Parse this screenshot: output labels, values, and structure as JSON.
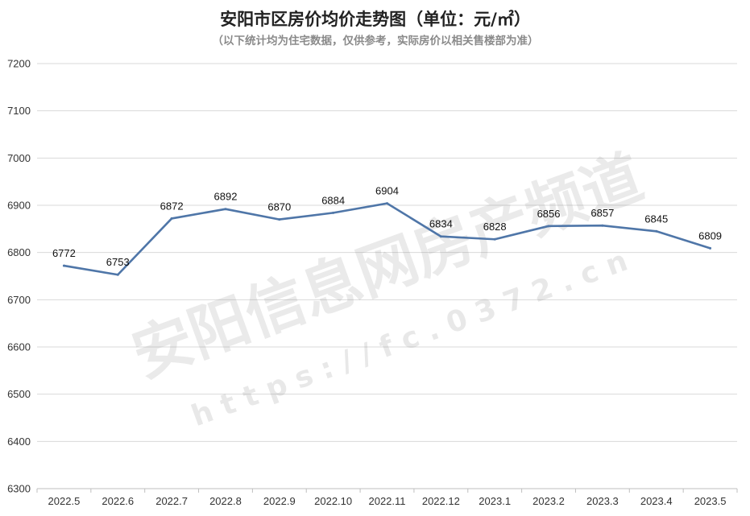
{
  "chart_data": {
    "type": "line",
    "title": "安阳市区房价均价走势图（单位：元/㎡）",
    "subtitle": "（以下统计均为住宅数据，仅供参考，实际房价以相关售楼部为准）",
    "categories": [
      "2022.5",
      "2022.6",
      "2022.7",
      "2022.8",
      "2022.9",
      "2022.10",
      "2022.11",
      "2022.12",
      "2023.1",
      "2023.2",
      "2023.3",
      "2023.4",
      "2023.5"
    ],
    "series": [
      {
        "values": [
          6772,
          6753,
          6872,
          6892,
          6870,
          6884,
          6904,
          6834,
          6828,
          6856,
          6857,
          6845,
          6809
        ]
      }
    ],
    "ylim": [
      6300,
      7200
    ],
    "yticks": [
      6300,
      6400,
      6500,
      6600,
      6700,
      6800,
      6900,
      7000,
      7100,
      7200
    ],
    "grid": true,
    "line_color": "#4f76a8",
    "grid_color": "#d9d9d9",
    "watermark": {
      "text": "安阳信息网房产频道",
      "url": "h t t p s : / / f c . 0 3 7 2 . c n"
    }
  }
}
